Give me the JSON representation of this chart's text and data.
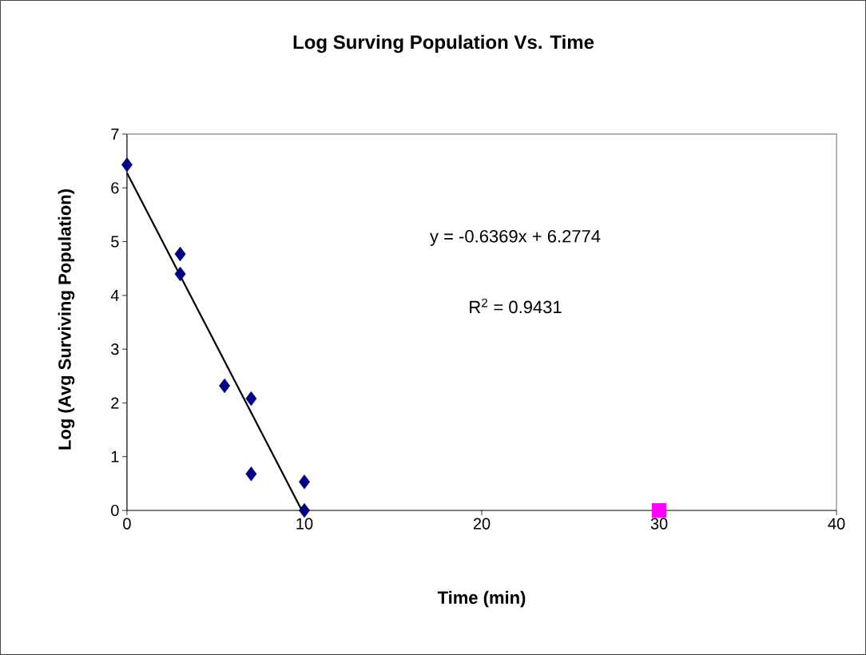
{
  "chart_data": {
    "type": "scatter",
    "title": "Log Surving Population Vs. Time",
    "xlabel": "Time (min)",
    "ylabel": "Log (Avg Surviving Population)",
    "annotations": [
      "y = -0.6369x + 6.2774",
      "R$^{2}$ = 0.9431"
    ],
    "series": [
      {
        "color": "#000080",
        "marker": "diamond",
        "x": [
          0,
          3,
          3,
          5.5,
          7,
          7,
          10,
          10
        ],
        "values": [
          6.43,
          4.77,
          4.4,
          2.32,
          2.08,
          0.68,
          0.53,
          0
        ]
      },
      {
        "color": "#ff00ff",
        "marker": "square",
        "x": [
          30
        ],
        "values": [
          0
        ]
      },
      {
        "type": "line",
        "color": "#000000",
        "marker": "none",
        "x": [
          0,
          9.86
        ],
        "values": [
          6.28,
          0
        ]
      }
    ],
    "xlim": [
      0,
      40
    ],
    "ylim": [
      0,
      7
    ],
    "xticks": [
      0,
      10,
      20,
      30,
      40
    ],
    "yticks": [
      0,
      1,
      2,
      3,
      4,
      5,
      6,
      7
    ],
    "grid": false
  }
}
